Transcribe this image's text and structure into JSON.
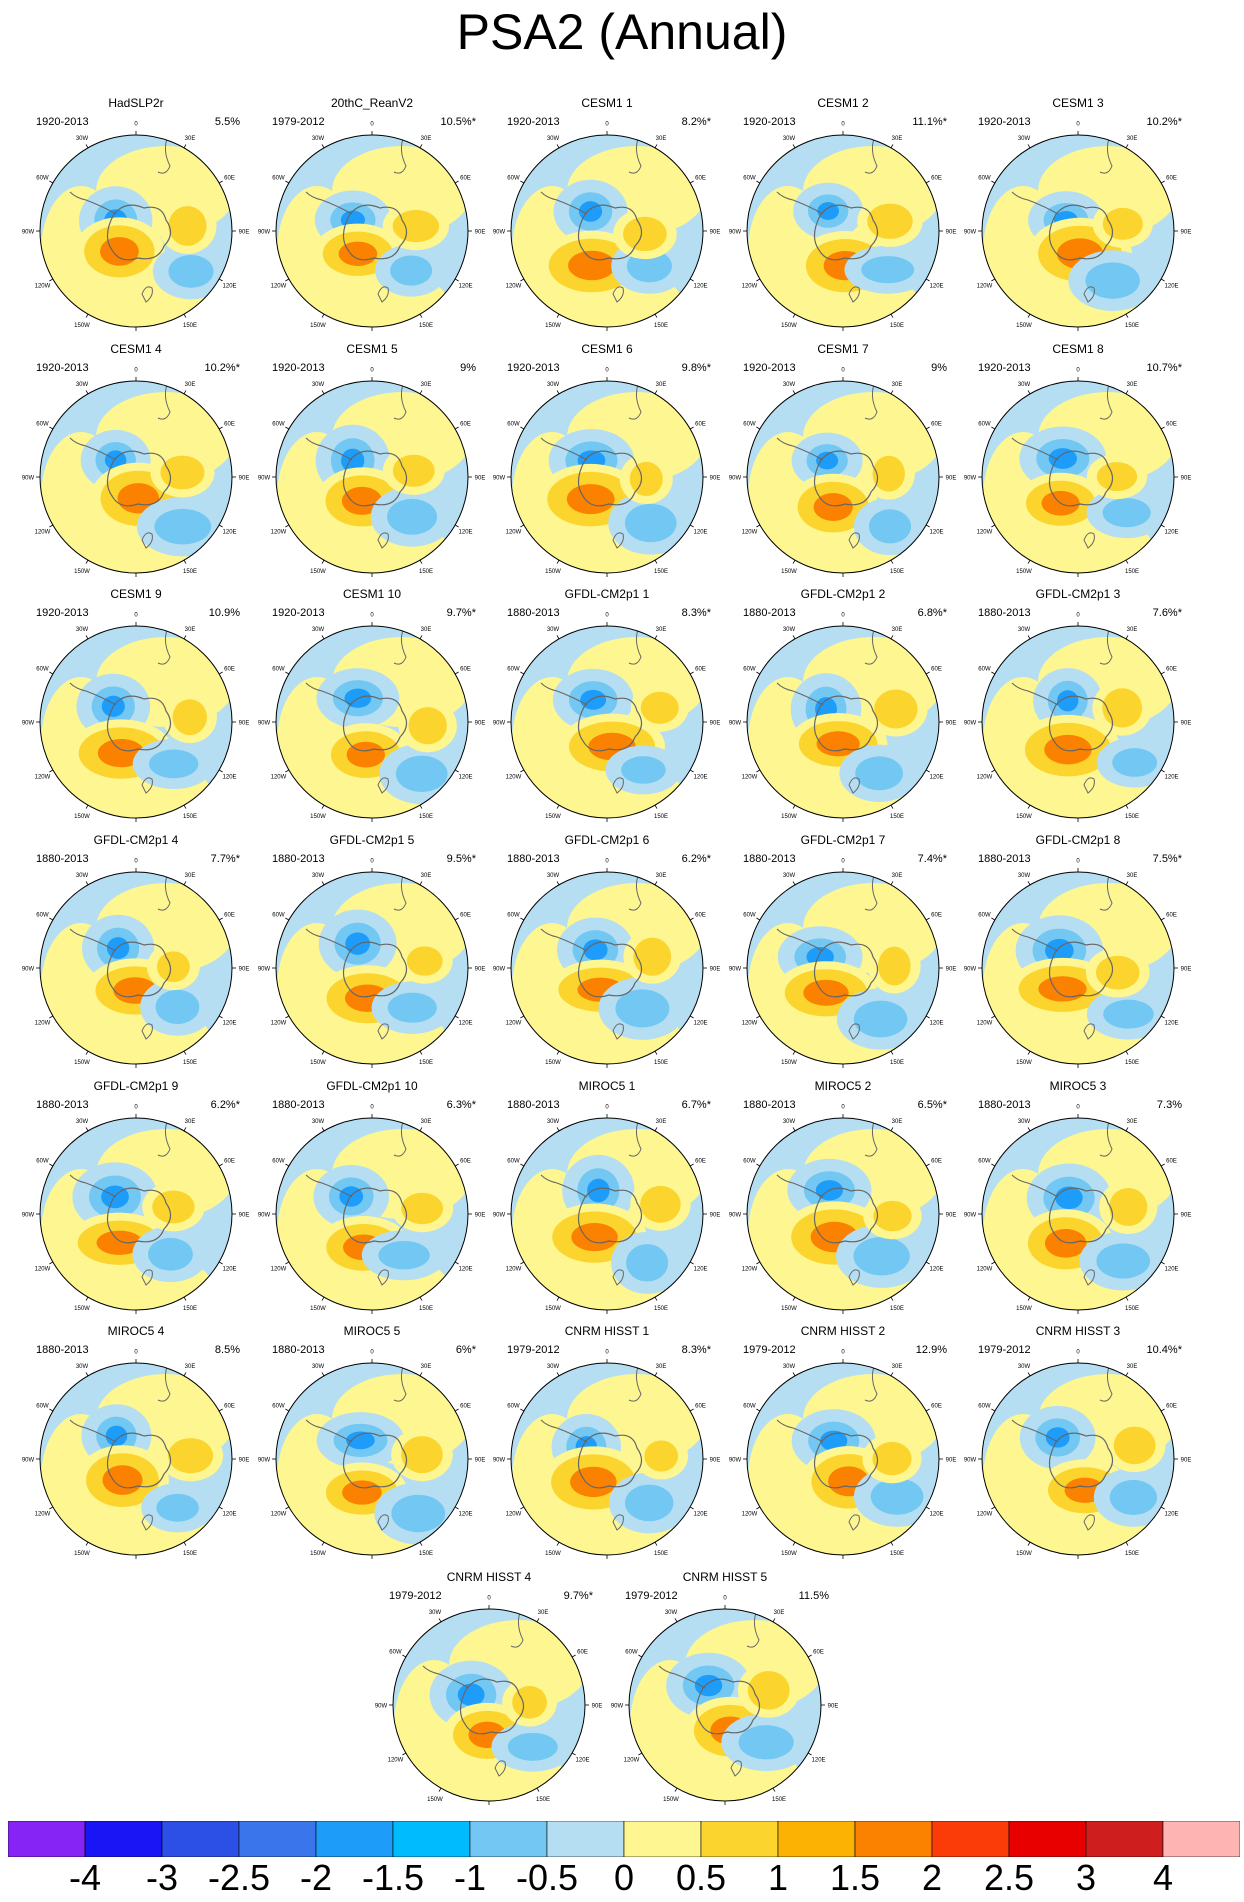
{
  "title": "PSA2 (Annual)",
  "chart_data": {
    "type": "heatmap",
    "title": "PSA2 (Annual)",
    "projection": "south polar stereographic",
    "lon_labels": {
      "top": "0",
      "right_upper": "30E",
      "right_mid": "60E",
      "right": "90E",
      "right_lower": "120E",
      "bottom_right": "150E",
      "bottom": "180",
      "bottom_left": "150W",
      "left_lower": "120W",
      "left": "90W",
      "left_mid": "60W",
      "left_upper": "30W"
    },
    "panels": [
      {
        "name": "HadSLP2r",
        "period": "1920-2013",
        "variance": "5.5%"
      },
      {
        "name": "20thC_ReanV2",
        "period": "1979-2012",
        "variance": "10.5%*"
      },
      {
        "name": "CESM1 1",
        "period": "1920-2013",
        "variance": "8.2%*"
      },
      {
        "name": "CESM1 2",
        "period": "1920-2013",
        "variance": "11.1%*"
      },
      {
        "name": "CESM1 3",
        "period": "1920-2013",
        "variance": "10.2%*"
      },
      {
        "name": "CESM1 4",
        "period": "1920-2013",
        "variance": "10.2%*"
      },
      {
        "name": "CESM1 5",
        "period": "1920-2013",
        "variance": "9%"
      },
      {
        "name": "CESM1 6",
        "period": "1920-2013",
        "variance": "9.8%*"
      },
      {
        "name": "CESM1 7",
        "period": "1920-2013",
        "variance": "9%"
      },
      {
        "name": "CESM1 8",
        "period": "1920-2013",
        "variance": "10.7%*"
      },
      {
        "name": "CESM1 9",
        "period": "1920-2013",
        "variance": "10.9%"
      },
      {
        "name": "CESM1 10",
        "period": "1920-2013",
        "variance": "9.7%*"
      },
      {
        "name": "GFDL-CM2p1 1",
        "period": "1880-2013",
        "variance": "8.3%*"
      },
      {
        "name": "GFDL-CM2p1 2",
        "period": "1880-2013",
        "variance": "6.8%*"
      },
      {
        "name": "GFDL-CM2p1 3",
        "period": "1880-2013",
        "variance": "7.6%*"
      },
      {
        "name": "GFDL-CM2p1 4",
        "period": "1880-2013",
        "variance": "7.7%*"
      },
      {
        "name": "GFDL-CM2p1 5",
        "period": "1880-2013",
        "variance": "9.5%*"
      },
      {
        "name": "GFDL-CM2p1 6",
        "period": "1880-2013",
        "variance": "6.2%*"
      },
      {
        "name": "GFDL-CM2p1 7",
        "period": "1880-2013",
        "variance": "7.4%*"
      },
      {
        "name": "GFDL-CM2p1 8",
        "period": "1880-2013",
        "variance": "7.5%*"
      },
      {
        "name": "GFDL-CM2p1 9",
        "period": "1880-2013",
        "variance": "6.2%*"
      },
      {
        "name": "GFDL-CM2p1 10",
        "period": "1880-2013",
        "variance": "6.3%*"
      },
      {
        "name": "MIROC5 1",
        "period": "1880-2013",
        "variance": "6.7%*"
      },
      {
        "name": "MIROC5 2",
        "period": "1880-2013",
        "variance": "6.5%*"
      },
      {
        "name": "MIROC5 3",
        "period": "1880-2013",
        "variance": "7.3%"
      },
      {
        "name": "MIROC5 4",
        "period": "1880-2013",
        "variance": "8.5%"
      },
      {
        "name": "MIROC5 5",
        "period": "1880-2013",
        "variance": "6%*"
      },
      {
        "name": "CNRM HISST 1",
        "period": "1979-2012",
        "variance": "8.3%*"
      },
      {
        "name": "CNRM HISST 2",
        "period": "1979-2012",
        "variance": "12.9%"
      },
      {
        "name": "CNRM HISST 3",
        "period": "1979-2012",
        "variance": "10.4%*"
      },
      {
        "name": "CNRM HISST 4",
        "period": "1979-2012",
        "variance": "9.7%*"
      },
      {
        "name": "CNRM HISST 5",
        "period": "1979-2012",
        "variance": "11.5%"
      }
    ],
    "colorbar": {
      "labels": [
        "-4",
        "-3",
        "-2.5",
        "-2",
        "-1.5",
        "-1",
        "-0.5",
        "0",
        "0.5",
        "1",
        "1.5",
        "2",
        "2.5",
        "3",
        "4"
      ],
      "colors": [
        "#8624f5",
        "#1a15f5",
        "#2c4fe6",
        "#3b75eb",
        "#1e9cfa",
        "#00bcff",
        "#72c8f2",
        "#b5def3",
        "#fdf691",
        "#fbd52d",
        "#fbb202",
        "#fb8100",
        "#fb3c09",
        "#e80000",
        "#cf1e1e",
        "#ffb4b4"
      ]
    },
    "colors": {
      "positive_weak": "#fdf691",
      "positive_mid": "#fbd52d",
      "positive_strong": "#fb8100",
      "negative_weak": "#b5def3",
      "negative_mid": "#72c8f2",
      "negative_strong": "#1e9cfa",
      "coast": "#666666"
    }
  }
}
